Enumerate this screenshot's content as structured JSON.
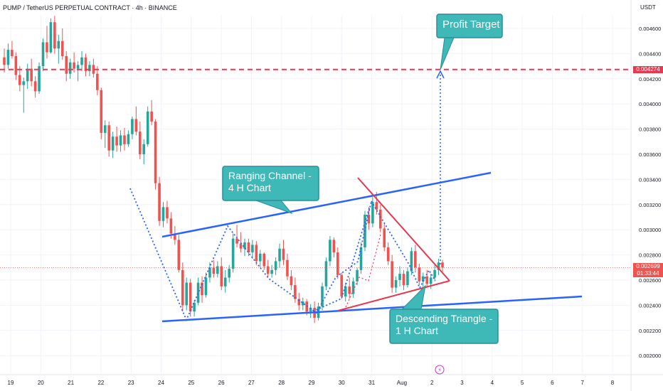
{
  "header": {
    "symbol_title": "PUMP / TetherUS PERPETUAL CONTRACT · 4h · BINANCE",
    "currency": "USDT"
  },
  "price_labels": {
    "target_price": "0.004274",
    "current_price": "0.002699",
    "countdown": "01:33:44"
  },
  "annotations": {
    "profit_target": "Profit Target",
    "ranging_channel": [
      "Ranging Channel -",
      "4 H Chart"
    ],
    "descending_triangle": [
      "Descending Triangle -",
      "1 H Chart"
    ]
  },
  "colors": {
    "up": "#26a69a",
    "down": "#ef5350",
    "channel_line": "#2962ff",
    "triangle_line": "#e53950",
    "target_line": "#e53950",
    "callout_fill": "#3fb8b8",
    "callout_border": "#2a8d99",
    "dotted_path": "#2962ff"
  },
  "chart_data": {
    "type": "candlestick",
    "interval": "4h",
    "x_ticks": [
      "19",
      "20",
      "21",
      "22",
      "23",
      "24",
      "25",
      "26",
      "27",
      "28",
      "29",
      "30",
      "31",
      "Aug",
      "2",
      "3",
      "4",
      "5",
      "6",
      "7",
      "8"
    ],
    "y_ticks": [
      "0.004600",
      "0.004400",
      "0.004200",
      "0.004000",
      "0.003800",
      "0.003600",
      "0.003400",
      "0.003200",
      "0.003000",
      "0.002800",
      "0.002600",
      "0.002400",
      "0.002200",
      "0.002000"
    ],
    "ylim": [
      0.00192,
      0.00475
    ],
    "target_level": 0.004274,
    "current_price": 0.002699,
    "candles": [
      [
        0.00437,
        0.00444,
        0.00425,
        0.00431
      ],
      [
        0.00431,
        0.00448,
        0.00428,
        0.00443
      ],
      [
        0.00443,
        0.0045,
        0.00436,
        0.00438
      ],
      [
        0.00438,
        0.00441,
        0.00419,
        0.00423
      ],
      [
        0.00423,
        0.0043,
        0.0041,
        0.00415
      ],
      [
        0.00415,
        0.00421,
        0.00393,
        0.00418
      ],
      [
        0.00418,
        0.00432,
        0.00412,
        0.00428
      ],
      [
        0.00428,
        0.00436,
        0.00414,
        0.00418
      ],
      [
        0.00418,
        0.00422,
        0.00405,
        0.0041
      ],
      [
        0.0041,
        0.00433,
        0.00408,
        0.0043
      ],
      [
        0.0043,
        0.00452,
        0.00426,
        0.00449
      ],
      [
        0.00449,
        0.00462,
        0.00436,
        0.00441
      ],
      [
        0.00441,
        0.00468,
        0.0044,
        0.00465
      ],
      [
        0.00465,
        0.0047,
        0.0044,
        0.00444
      ],
      [
        0.00444,
        0.00455,
        0.00432,
        0.0045
      ],
      [
        0.0045,
        0.0046,
        0.00435,
        0.00438
      ],
      [
        0.00438,
        0.00442,
        0.00418,
        0.00424
      ],
      [
        0.00424,
        0.00436,
        0.0042,
        0.00433
      ],
      [
        0.00433,
        0.00441,
        0.00425,
        0.00428
      ],
      [
        0.00428,
        0.00434,
        0.00418,
        0.00431
      ],
      [
        0.00431,
        0.00442,
        0.00426,
        0.00437
      ],
      [
        0.00437,
        0.0044,
        0.00422,
        0.00426
      ],
      [
        0.00426,
        0.00434,
        0.00422,
        0.00431
      ],
      [
        0.00431,
        0.00436,
        0.00421,
        0.00424
      ],
      [
        0.00424,
        0.0043,
        0.00407,
        0.00411
      ],
      [
        0.00411,
        0.00413,
        0.00372,
        0.00377
      ],
      [
        0.00377,
        0.00387,
        0.00365,
        0.00383
      ],
      [
        0.00383,
        0.00386,
        0.00358,
        0.00363
      ],
      [
        0.00363,
        0.00378,
        0.00357,
        0.00374
      ],
      [
        0.00374,
        0.00382,
        0.00362,
        0.00367
      ],
      [
        0.00367,
        0.00379,
        0.00362,
        0.00375
      ],
      [
        0.00375,
        0.00381,
        0.00363,
        0.00368
      ],
      [
        0.00368,
        0.00379,
        0.00366,
        0.00376
      ],
      [
        0.00376,
        0.0039,
        0.00372,
        0.00388
      ],
      [
        0.00388,
        0.00398,
        0.00375,
        0.00378
      ],
      [
        0.00378,
        0.00386,
        0.00356,
        0.0036
      ],
      [
        0.0036,
        0.00372,
        0.00352,
        0.00368
      ],
      [
        0.00368,
        0.00398,
        0.00366,
        0.00394
      ],
      [
        0.00394,
        0.00403,
        0.00383,
        0.00386
      ],
      [
        0.00386,
        0.00388,
        0.00332,
        0.00337
      ],
      [
        0.00337,
        0.00342,
        0.00303,
        0.00307
      ],
      [
        0.00307,
        0.00322,
        0.00302,
        0.00318
      ],
      [
        0.00318,
        0.00323,
        0.00305,
        0.00309
      ],
      [
        0.00309,
        0.00314,
        0.00293,
        0.00297
      ],
      [
        0.00297,
        0.00303,
        0.00288,
        0.00292
      ],
      [
        0.00292,
        0.00296,
        0.00266,
        0.00268
      ],
      [
        0.00268,
        0.00274,
        0.00235,
        0.0024
      ],
      [
        0.0024,
        0.00262,
        0.00236,
        0.00258
      ],
      [
        0.00258,
        0.00261,
        0.00231,
        0.00235
      ],
      [
        0.00235,
        0.00244,
        0.00231,
        0.00242
      ],
      [
        0.00242,
        0.00262,
        0.0024,
        0.00258
      ],
      [
        0.00258,
        0.00263,
        0.00242,
        0.00248
      ],
      [
        0.00248,
        0.00266,
        0.00246,
        0.00262
      ],
      [
        0.00262,
        0.00274,
        0.00258,
        0.0027
      ],
      [
        0.0027,
        0.00276,
        0.00262,
        0.00265
      ],
      [
        0.00265,
        0.00275,
        0.00262,
        0.00271
      ],
      [
        0.00271,
        0.00278,
        0.00252,
        0.00255
      ],
      [
        0.00255,
        0.00268,
        0.0025,
        0.00262
      ],
      [
        0.00262,
        0.00272,
        0.00258,
        0.00269
      ],
      [
        0.00269,
        0.00297,
        0.00266,
        0.00293
      ],
      [
        0.00293,
        0.00304,
        0.00286,
        0.00289
      ],
      [
        0.00289,
        0.00298,
        0.00282,
        0.00285
      ],
      [
        0.00285,
        0.00293,
        0.00279,
        0.0029
      ],
      [
        0.0029,
        0.00293,
        0.00279,
        0.00282
      ],
      [
        0.00282,
        0.00292,
        0.00277,
        0.00288
      ],
      [
        0.00288,
        0.00291,
        0.00272,
        0.00275
      ],
      [
        0.00275,
        0.00284,
        0.0027,
        0.00281
      ],
      [
        0.00281,
        0.00282,
        0.00268,
        0.00271
      ],
      [
        0.00271,
        0.00276,
        0.00262,
        0.00265
      ],
      [
        0.00265,
        0.00272,
        0.00262,
        0.00268
      ],
      [
        0.00268,
        0.00278,
        0.00264,
        0.00275
      ],
      [
        0.00275,
        0.00289,
        0.0027,
        0.00285
      ],
      [
        0.00285,
        0.00292,
        0.00272,
        0.00276
      ],
      [
        0.00276,
        0.00281,
        0.0026,
        0.00263
      ],
      [
        0.00263,
        0.00268,
        0.00252,
        0.00256
      ],
      [
        0.00256,
        0.00262,
        0.00242,
        0.00245
      ],
      [
        0.00245,
        0.0025,
        0.00236,
        0.0024
      ],
      [
        0.0024,
        0.00246,
        0.00236,
        0.00243
      ],
      [
        0.00243,
        0.00245,
        0.00232,
        0.00235
      ],
      [
        0.00235,
        0.00241,
        0.0023,
        0.00238
      ],
      [
        0.00238,
        0.00243,
        0.00226,
        0.0023
      ],
      [
        0.0023,
        0.00242,
        0.00228,
        0.00239
      ],
      [
        0.00239,
        0.00258,
        0.00236,
        0.00255
      ],
      [
        0.00255,
        0.00278,
        0.00252,
        0.00275
      ],
      [
        0.00275,
        0.00295,
        0.00271,
        0.00292
      ],
      [
        0.00292,
        0.00294,
        0.00278,
        0.00282
      ],
      [
        0.00282,
        0.00286,
        0.00261,
        0.00264
      ],
      [
        0.00264,
        0.00266,
        0.00245,
        0.00247
      ],
      [
        0.00247,
        0.00258,
        0.00243,
        0.00255
      ],
      [
        0.00255,
        0.00262,
        0.00245,
        0.00249
      ],
      [
        0.00249,
        0.00262,
        0.00246,
        0.00259
      ],
      [
        0.00259,
        0.0027,
        0.00256,
        0.00268
      ],
      [
        0.00268,
        0.0029,
        0.00265,
        0.00286
      ],
      [
        0.00286,
        0.00315,
        0.00283,
        0.00312
      ],
      [
        0.00312,
        0.00318,
        0.003,
        0.00305
      ],
      [
        0.00305,
        0.00326,
        0.00302,
        0.00322
      ],
      [
        0.00322,
        0.0033,
        0.00312,
        0.00316
      ],
      [
        0.00316,
        0.0032,
        0.00298,
        0.00301
      ],
      [
        0.00301,
        0.00305,
        0.00283,
        0.00286
      ],
      [
        0.00286,
        0.0029,
        0.00272,
        0.00275
      ],
      [
        0.00275,
        0.0028,
        0.0025,
        0.00254
      ],
      [
        0.00254,
        0.00263,
        0.0025,
        0.0026
      ],
      [
        0.0026,
        0.00271,
        0.00255,
        0.00265
      ],
      [
        0.00265,
        0.00268,
        0.00252,
        0.00256
      ],
      [
        0.00256,
        0.0027,
        0.00254,
        0.00267
      ],
      [
        0.00267,
        0.00286,
        0.00264,
        0.00283
      ],
      [
        0.00283,
        0.00288,
        0.00266,
        0.0027
      ],
      [
        0.0027,
        0.00273,
        0.00256,
        0.00259
      ],
      [
        0.00259,
        0.00266,
        0.00252,
        0.00263
      ],
      [
        0.00263,
        0.00268,
        0.00254,
        0.00257
      ],
      [
        0.00257,
        0.00265,
        0.00253,
        0.00262
      ],
      [
        0.00262,
        0.00272,
        0.00259,
        0.00268
      ],
      [
        0.00268,
        0.00277,
        0.00264,
        0.00274
      ],
      [
        0.00274,
        0.00276,
        0.00266,
        0.0027
      ]
    ]
  }
}
